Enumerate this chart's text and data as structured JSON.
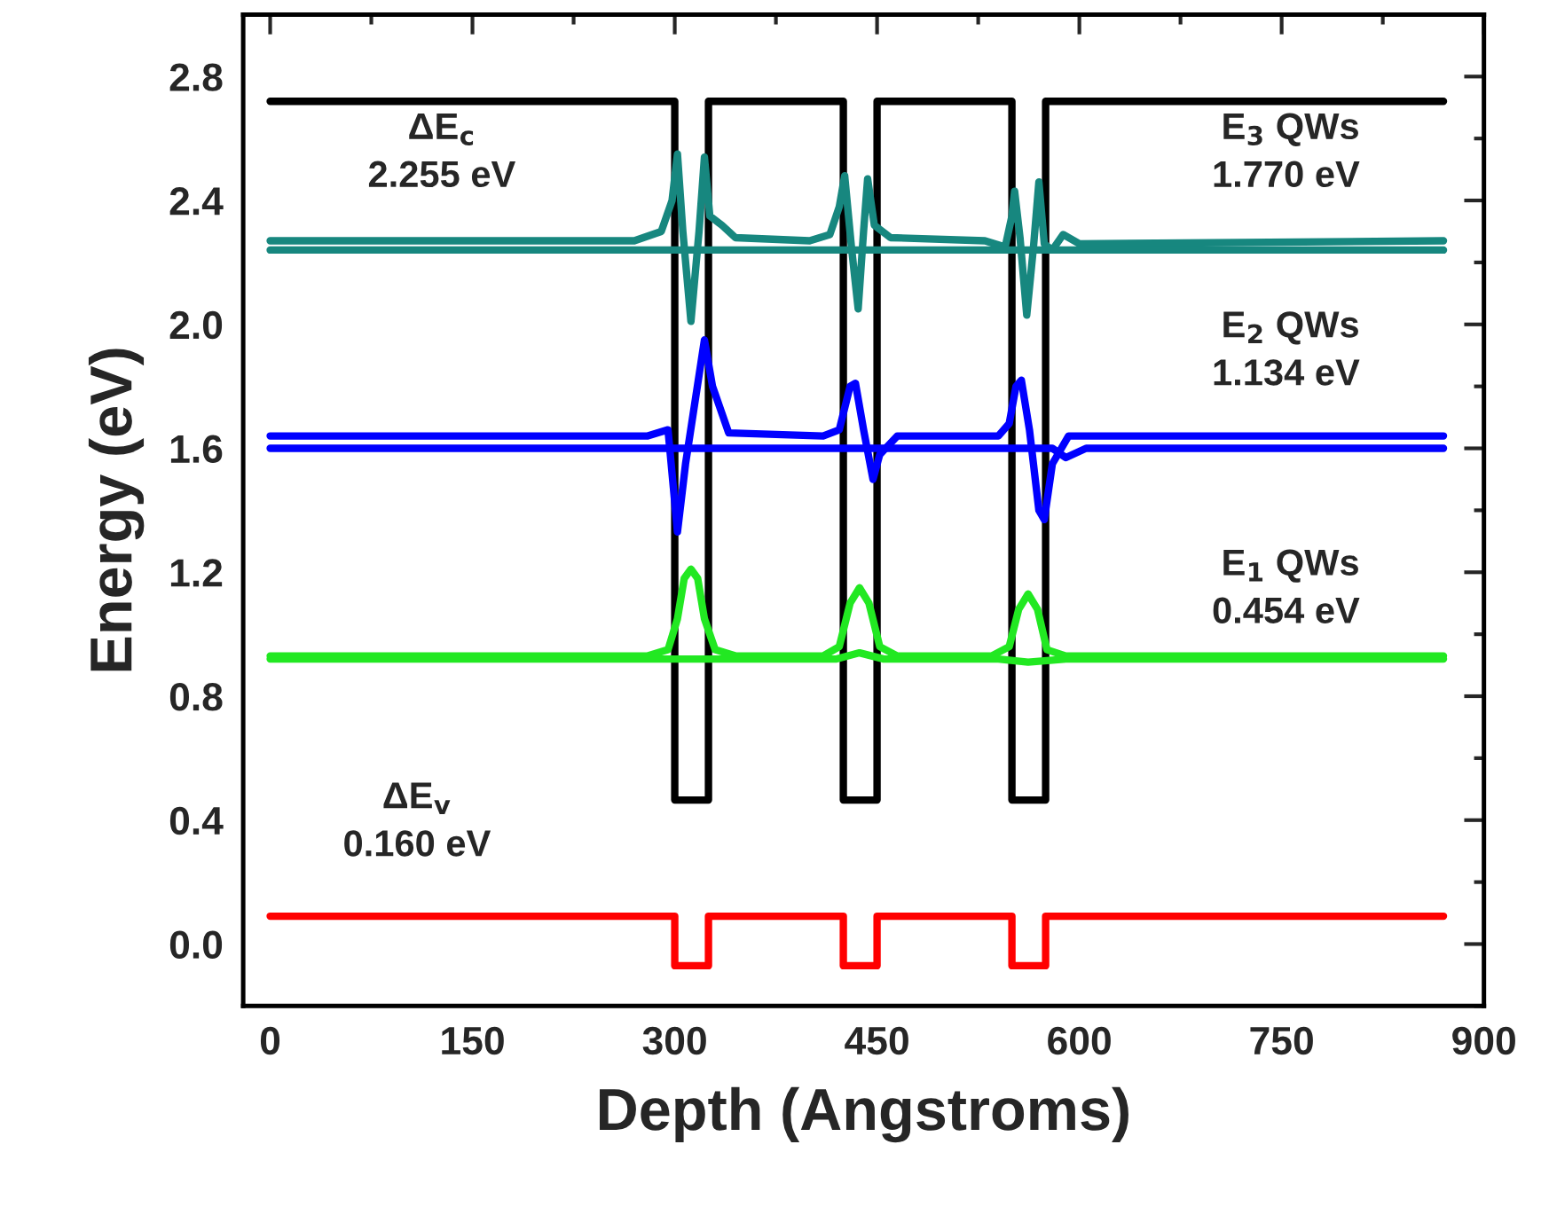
{
  "chart_data": {
    "type": "line",
    "xlabel": "Depth (Angstroms)",
    "ylabel": "Energy (eV)",
    "xlim": [
      -20,
      900
    ],
    "ylim": [
      -0.2,
      3.0
    ],
    "xticks": [
      0,
      150,
      300,
      450,
      600,
      750,
      900
    ],
    "yticks": [
      {
        "value": 0,
        "label": "0.0"
      },
      {
        "value": 0.4,
        "label": "0.4"
      },
      {
        "value": 0.8,
        "label": "0.8"
      },
      {
        "value": 1.2,
        "label": "1.2"
      },
      {
        "value": 1.6,
        "label": "1.6"
      },
      {
        "value": 2.0,
        "label": "2.0"
      },
      {
        "value": 2.4,
        "label": "2.4"
      },
      {
        "value": 2.8,
        "label": "2.8"
      }
    ],
    "grid": false,
    "legend": false,
    "marker": "none",
    "line_style": "solid",
    "annotations": [
      "ΔE$_{c}$\n2.255 eV",
      "E$_{3}$ QWs\n1.770 eV",
      "E$_{2}$ QWs\n1.134 eV",
      "E$_{1}$ QWs\n0.454 eV",
      "ΔE$_{v}$\n0.160 eV"
    ],
    "series": [
      {
        "color": "#000000",
        "x": [
          0,
          300,
          300,
          325,
          325,
          425,
          425,
          450,
          450,
          550,
          550,
          575,
          575,
          870
        ],
        "values": [
          2.72,
          2.72,
          0.465,
          0.465,
          2.72,
          2.72,
          0.465,
          0.465,
          2.72,
          2.72,
          0.465,
          0.465,
          2.72,
          2.72
        ]
      },
      {
        "color": "#ff0000",
        "x": [
          0,
          300,
          300,
          325,
          325,
          425,
          425,
          450,
          450,
          550,
          550,
          575,
          575,
          870
        ],
        "values": [
          0.09,
          0.09,
          -0.07,
          -0.07,
          0.09,
          0.09,
          -0.07,
          -0.07,
          0.09,
          0.09,
          -0.07,
          -0.07,
          0.09,
          0.09
        ]
      },
      {
        "color": "#22e822",
        "x": [
          0,
          280,
          295,
          302,
          307,
          312,
          317,
          322,
          330,
          345,
          410,
          422,
          430,
          437,
          444,
          452,
          465,
          535,
          548,
          555,
          562,
          569,
          576,
          590,
          870
        ],
        "values": [
          0.93,
          0.93,
          0.95,
          1.05,
          1.18,
          1.21,
          1.18,
          1.05,
          0.95,
          0.93,
          0.93,
          0.96,
          1.1,
          1.15,
          1.1,
          0.96,
          0.93,
          0.93,
          0.96,
          1.08,
          1.13,
          1.08,
          0.95,
          0.93,
          0.93
        ]
      },
      {
        "color": "#22e822",
        "x": [
          0,
          420,
          437,
          455,
          540,
          562,
          590,
          870
        ],
        "values": [
          0.92,
          0.92,
          0.94,
          0.92,
          0.92,
          0.91,
          0.92,
          0.92
        ]
      },
      {
        "color": "#0000ff",
        "x": [
          0,
          280,
          295,
          302,
          308,
          315,
          322,
          328,
          340,
          410,
          422,
          430,
          434,
          440,
          447,
          452,
          465,
          540,
          548,
          553,
          557,
          563,
          570,
          574,
          580,
          592,
          870
        ],
        "values": [
          1.64,
          1.64,
          1.66,
          1.33,
          1.55,
          1.75,
          1.95,
          1.8,
          1.65,
          1.64,
          1.66,
          1.8,
          1.81,
          1.66,
          1.5,
          1.58,
          1.64,
          1.64,
          1.68,
          1.8,
          1.82,
          1.66,
          1.4,
          1.37,
          1.55,
          1.64,
          1.64
        ]
      },
      {
        "color": "#0000ff",
        "x": [
          0,
          580,
          590,
          605,
          870
        ],
        "values": [
          1.6,
          1.6,
          1.57,
          1.6,
          1.6
        ]
      },
      {
        "color": "#17877f",
        "x": [
          0,
          270,
          290,
          298,
          302,
          306,
          312,
          318,
          322,
          326,
          335,
          345,
          400,
          415,
          422,
          426,
          431,
          436,
          440,
          443,
          448,
          460,
          530,
          545,
          550,
          552,
          556,
          561,
          566,
          570,
          574,
          580,
          588,
          600,
          870
        ],
        "values": [
          2.27,
          2.27,
          2.3,
          2.4,
          2.55,
          2.3,
          2.01,
          2.3,
          2.54,
          2.35,
          2.32,
          2.28,
          2.27,
          2.29,
          2.38,
          2.48,
          2.25,
          2.05,
          2.3,
          2.47,
          2.32,
          2.28,
          2.27,
          2.25,
          2.35,
          2.43,
          2.28,
          2.03,
          2.25,
          2.46,
          2.26,
          2.24,
          2.29,
          2.26,
          2.27
        ]
      },
      {
        "color": "#17877f",
        "x": [
          0,
          870
        ],
        "values": [
          2.24,
          2.24
        ]
      }
    ]
  }
}
